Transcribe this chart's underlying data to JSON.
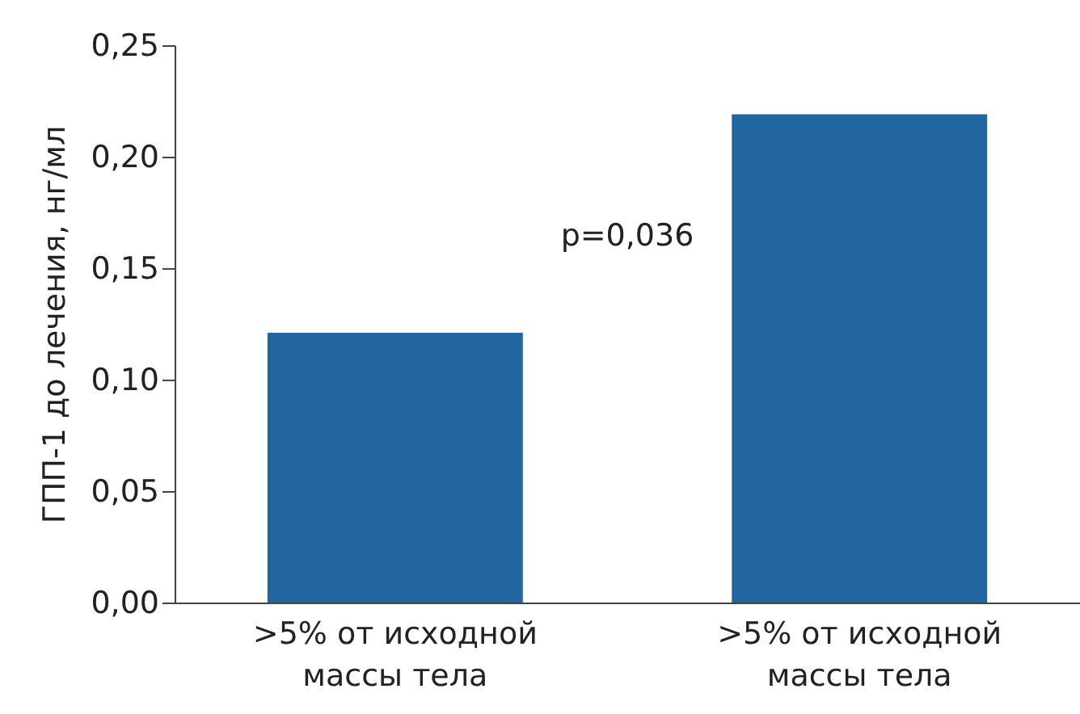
{
  "chart_data": {
    "type": "bar",
    "ylabel": "ГПП-1 до лечения, нг/мл",
    "categories": [
      ">5% от исходной массы тела",
      ">5% от исходной массы тела"
    ],
    "values": [
      0.121,
      0.219
    ],
    "color": "#2166a1",
    "ylim": [
      0,
      0.25
    ],
    "yticks": [
      {
        "value": 0,
        "label": "0,00"
      },
      {
        "value": 0.05,
        "label": "0,05"
      },
      {
        "value": 0.1,
        "label": "0,10"
      },
      {
        "value": 0.15,
        "label": "0,15"
      },
      {
        "value": 0.2,
        "label": "0,20"
      },
      {
        "value": 0.25,
        "label": "0,25"
      }
    ],
    "annotations": [
      "p=0,036"
    ],
    "grid": false
  }
}
